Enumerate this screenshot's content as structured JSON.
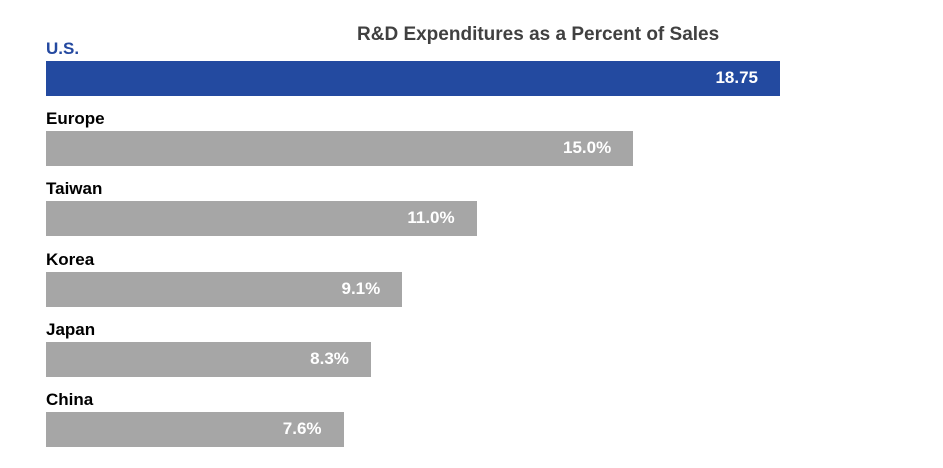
{
  "chart_data": {
    "type": "bar",
    "orientation": "horizontal",
    "title": "R&D Expenditures as a Percent of Sales",
    "xlabel": "",
    "ylabel": "",
    "xlim": [
      0,
      18.75
    ],
    "grid": false,
    "legend": "none",
    "categories": [
      "U.S.",
      "Europe",
      "Taiwan",
      "Korea",
      "Japan",
      "China"
    ],
    "values": [
      18.75,
      15.0,
      11.0,
      9.1,
      8.3,
      7.6
    ],
    "data_labels": [
      "18.75",
      "15.0%",
      "11.0%",
      "9.1%",
      "8.3%",
      "7.6%"
    ],
    "highlight_index": 0,
    "colors": {
      "highlight": "#234aa0",
      "highlight_label": "#2449a0",
      "default": "#a6a6a6",
      "value_text": "#ffffff",
      "title": "#404040"
    }
  }
}
